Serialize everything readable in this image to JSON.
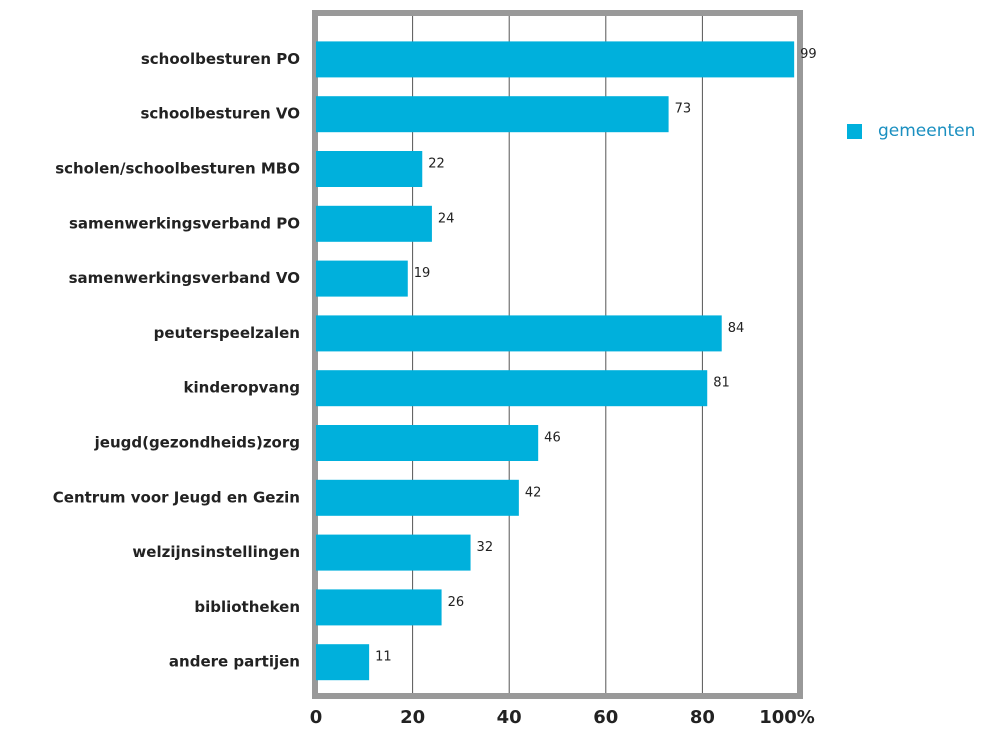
{
  "chart_data": {
    "type": "bar",
    "categories": [
      "schoolbesturen PO",
      "schoolbesturen VO",
      "scholen/schoolbesturen MBO",
      "samenwerkingsverband PO",
      "samenwerkingsverband VO",
      "peuterspeelzalen",
      "kinderopvang",
      "jeugd(gezondheids)zorg",
      "Centrum voor Jeugd en Gezin",
      "welzijnsinstellingen",
      "bibliotheken",
      "andere partijen"
    ],
    "series": [
      {
        "name": "gemeenten",
        "color": "#00b0dc",
        "values": [
          99,
          73,
          22,
          24,
          19,
          84,
          81,
          46,
          42,
          32,
          26,
          11
        ]
      }
    ],
    "xlim": [
      0,
      100
    ],
    "xticks": [
      0,
      20,
      40,
      60,
      80,
      {
        "value": 100,
        "label": "100%"
      }
    ],
    "grid": true,
    "legend": "right"
  }
}
